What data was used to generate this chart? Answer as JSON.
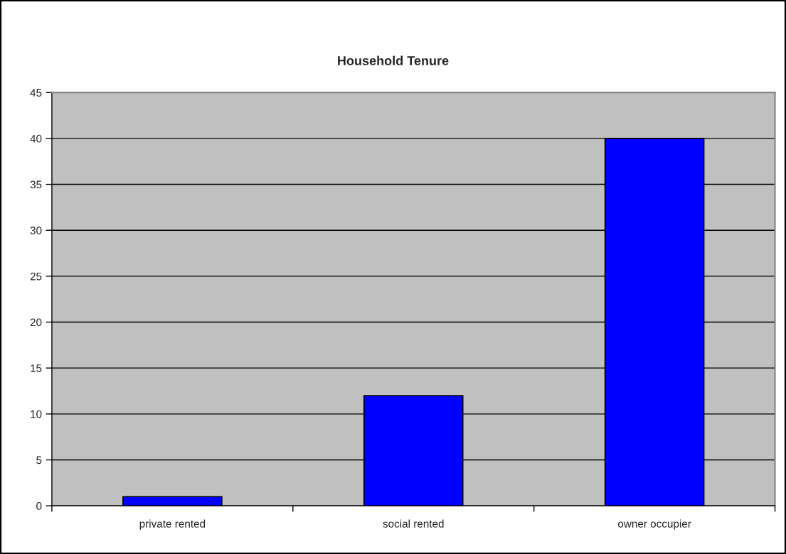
{
  "chart_data": {
    "type": "bar",
    "title": "Household Tenure",
    "categories": [
      "private rented",
      "social rented",
      "owner occupier"
    ],
    "values": [
      1,
      12,
      40
    ],
    "color": "#0000ff",
    "ylim": [
      0,
      45
    ],
    "yticks": [
      0,
      5,
      10,
      15,
      20,
      25,
      30,
      35,
      40,
      45
    ],
    "grid": "y",
    "legend": false
  }
}
